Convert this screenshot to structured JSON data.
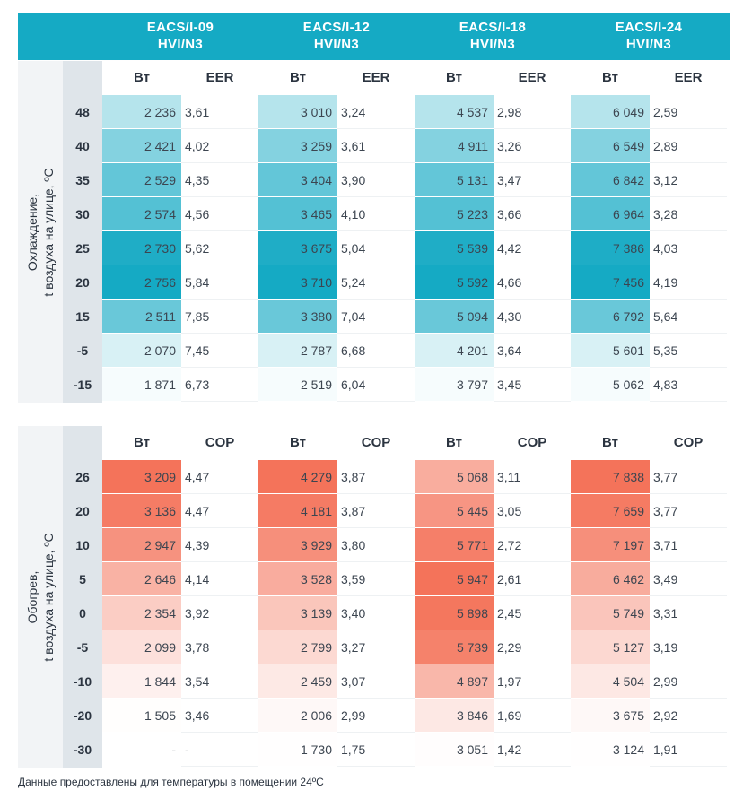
{
  "models": [
    "EACS/I-09\nHVI/N3",
    "EACS/I-12\nHVI/N3",
    "EACS/I-18\nHVI/N3",
    "EACS/I-24\nHVI/N3"
  ],
  "cooling": {
    "side_label": "Охлаждение,\nt воздуха на улице, ºC",
    "power_label": "Вт",
    "ratio_label": "EER",
    "rows": [
      {
        "t": "48",
        "cells": [
          [
            "2 236",
            "3,61"
          ],
          [
            "3 010",
            "3,24"
          ],
          [
            "4 537",
            "2,98"
          ],
          [
            "6 049",
            "2,59"
          ]
        ]
      },
      {
        "t": "40",
        "cells": [
          [
            "2 421",
            "4,02"
          ],
          [
            "3 259",
            "3,61"
          ],
          [
            "4 911",
            "3,26"
          ],
          [
            "6 549",
            "2,89"
          ]
        ]
      },
      {
        "t": "35",
        "cells": [
          [
            "2 529",
            "4,35"
          ],
          [
            "3 404",
            "3,90"
          ],
          [
            "5 131",
            "3,47"
          ],
          [
            "6 842",
            "3,12"
          ]
        ]
      },
      {
        "t": "30",
        "cells": [
          [
            "2 574",
            "4,56"
          ],
          [
            "3 465",
            "4,10"
          ],
          [
            "5 223",
            "3,66"
          ],
          [
            "6 964",
            "3,28"
          ]
        ]
      },
      {
        "t": "25",
        "cells": [
          [
            "2 730",
            "5,62"
          ],
          [
            "3 675",
            "5,04"
          ],
          [
            "5 539",
            "4,42"
          ],
          [
            "7 386",
            "4,03"
          ]
        ]
      },
      {
        "t": "20",
        "cells": [
          [
            "2 756",
            "5,84"
          ],
          [
            "3 710",
            "5,24"
          ],
          [
            "5 592",
            "4,66"
          ],
          [
            "7 456",
            "4,19"
          ]
        ]
      },
      {
        "t": "15",
        "cells": [
          [
            "2 511",
            "7,85"
          ],
          [
            "3 380",
            "7,04"
          ],
          [
            "5 094",
            "4,30"
          ],
          [
            "6 792",
            "5,64"
          ]
        ]
      },
      {
        "t": "-5",
        "cells": [
          [
            "2 070",
            "7,45"
          ],
          [
            "2 787",
            "6,68"
          ],
          [
            "4 201",
            "3,64"
          ],
          [
            "5 601",
            "5,35"
          ]
        ]
      },
      {
        "t": "-15",
        "cells": [
          [
            "1 871",
            "6,73"
          ],
          [
            "2 519",
            "6,04"
          ],
          [
            "3 797",
            "3,45"
          ],
          [
            "5 062",
            "4,83"
          ]
        ]
      }
    ]
  },
  "heating": {
    "side_label": "Обогрев,\nt воздуха на улице, ºC",
    "power_label": "Вт",
    "ratio_label": "COP",
    "rows": [
      {
        "t": "26",
        "cells": [
          [
            "3 209",
            "4,47"
          ],
          [
            "4 279",
            "3,87"
          ],
          [
            "5 068",
            "3,11"
          ],
          [
            "7 838",
            "3,77"
          ]
        ]
      },
      {
        "t": "20",
        "cells": [
          [
            "3 136",
            "4,47"
          ],
          [
            "4 181",
            "3,87"
          ],
          [
            "5 445",
            "3,05"
          ],
          [
            "7 659",
            "3,77"
          ]
        ]
      },
      {
        "t": "10",
        "cells": [
          [
            "2 947",
            "4,39"
          ],
          [
            "3 929",
            "3,80"
          ],
          [
            "5 771",
            "2,72"
          ],
          [
            "7 197",
            "3,71"
          ]
        ]
      },
      {
        "t": "5",
        "cells": [
          [
            "2 646",
            "4,14"
          ],
          [
            "3 528",
            "3,59"
          ],
          [
            "5 947",
            "2,61"
          ],
          [
            "6 462",
            "3,49"
          ]
        ]
      },
      {
        "t": "0",
        "cells": [
          [
            "2 354",
            "3,92"
          ],
          [
            "3 139",
            "3,40"
          ],
          [
            "5 898",
            "2,45"
          ],
          [
            "5 749",
            "3,31"
          ]
        ]
      },
      {
        "t": "-5",
        "cells": [
          [
            "2 099",
            "3,78"
          ],
          [
            "2 799",
            "3,27"
          ],
          [
            "5 739",
            "2,29"
          ],
          [
            "5 127",
            "3,19"
          ]
        ]
      },
      {
        "t": "-10",
        "cells": [
          [
            "1 844",
            "3,54"
          ],
          [
            "2 459",
            "3,07"
          ],
          [
            "4 897",
            "1,97"
          ],
          [
            "4 504",
            "2,99"
          ]
        ]
      },
      {
        "t": "-20",
        "cells": [
          [
            "1 505",
            "3,46"
          ],
          [
            "2 006",
            "2,99"
          ],
          [
            "3 846",
            "1,69"
          ],
          [
            "3 675",
            "2,92"
          ]
        ]
      },
      {
        "t": "-30",
        "cells": [
          [
            "-",
            "-"
          ],
          [
            "1 730",
            "1,75"
          ],
          [
            "3 051",
            "1,42"
          ],
          [
            "3 124",
            "1,91"
          ]
        ]
      }
    ]
  },
  "footnote": "Данные предоставлены для температуры в помещении 24ºC",
  "colors": {
    "header": "#15aac4",
    "cool_max": "#15aac4",
    "heat_max": "#f4735a"
  }
}
